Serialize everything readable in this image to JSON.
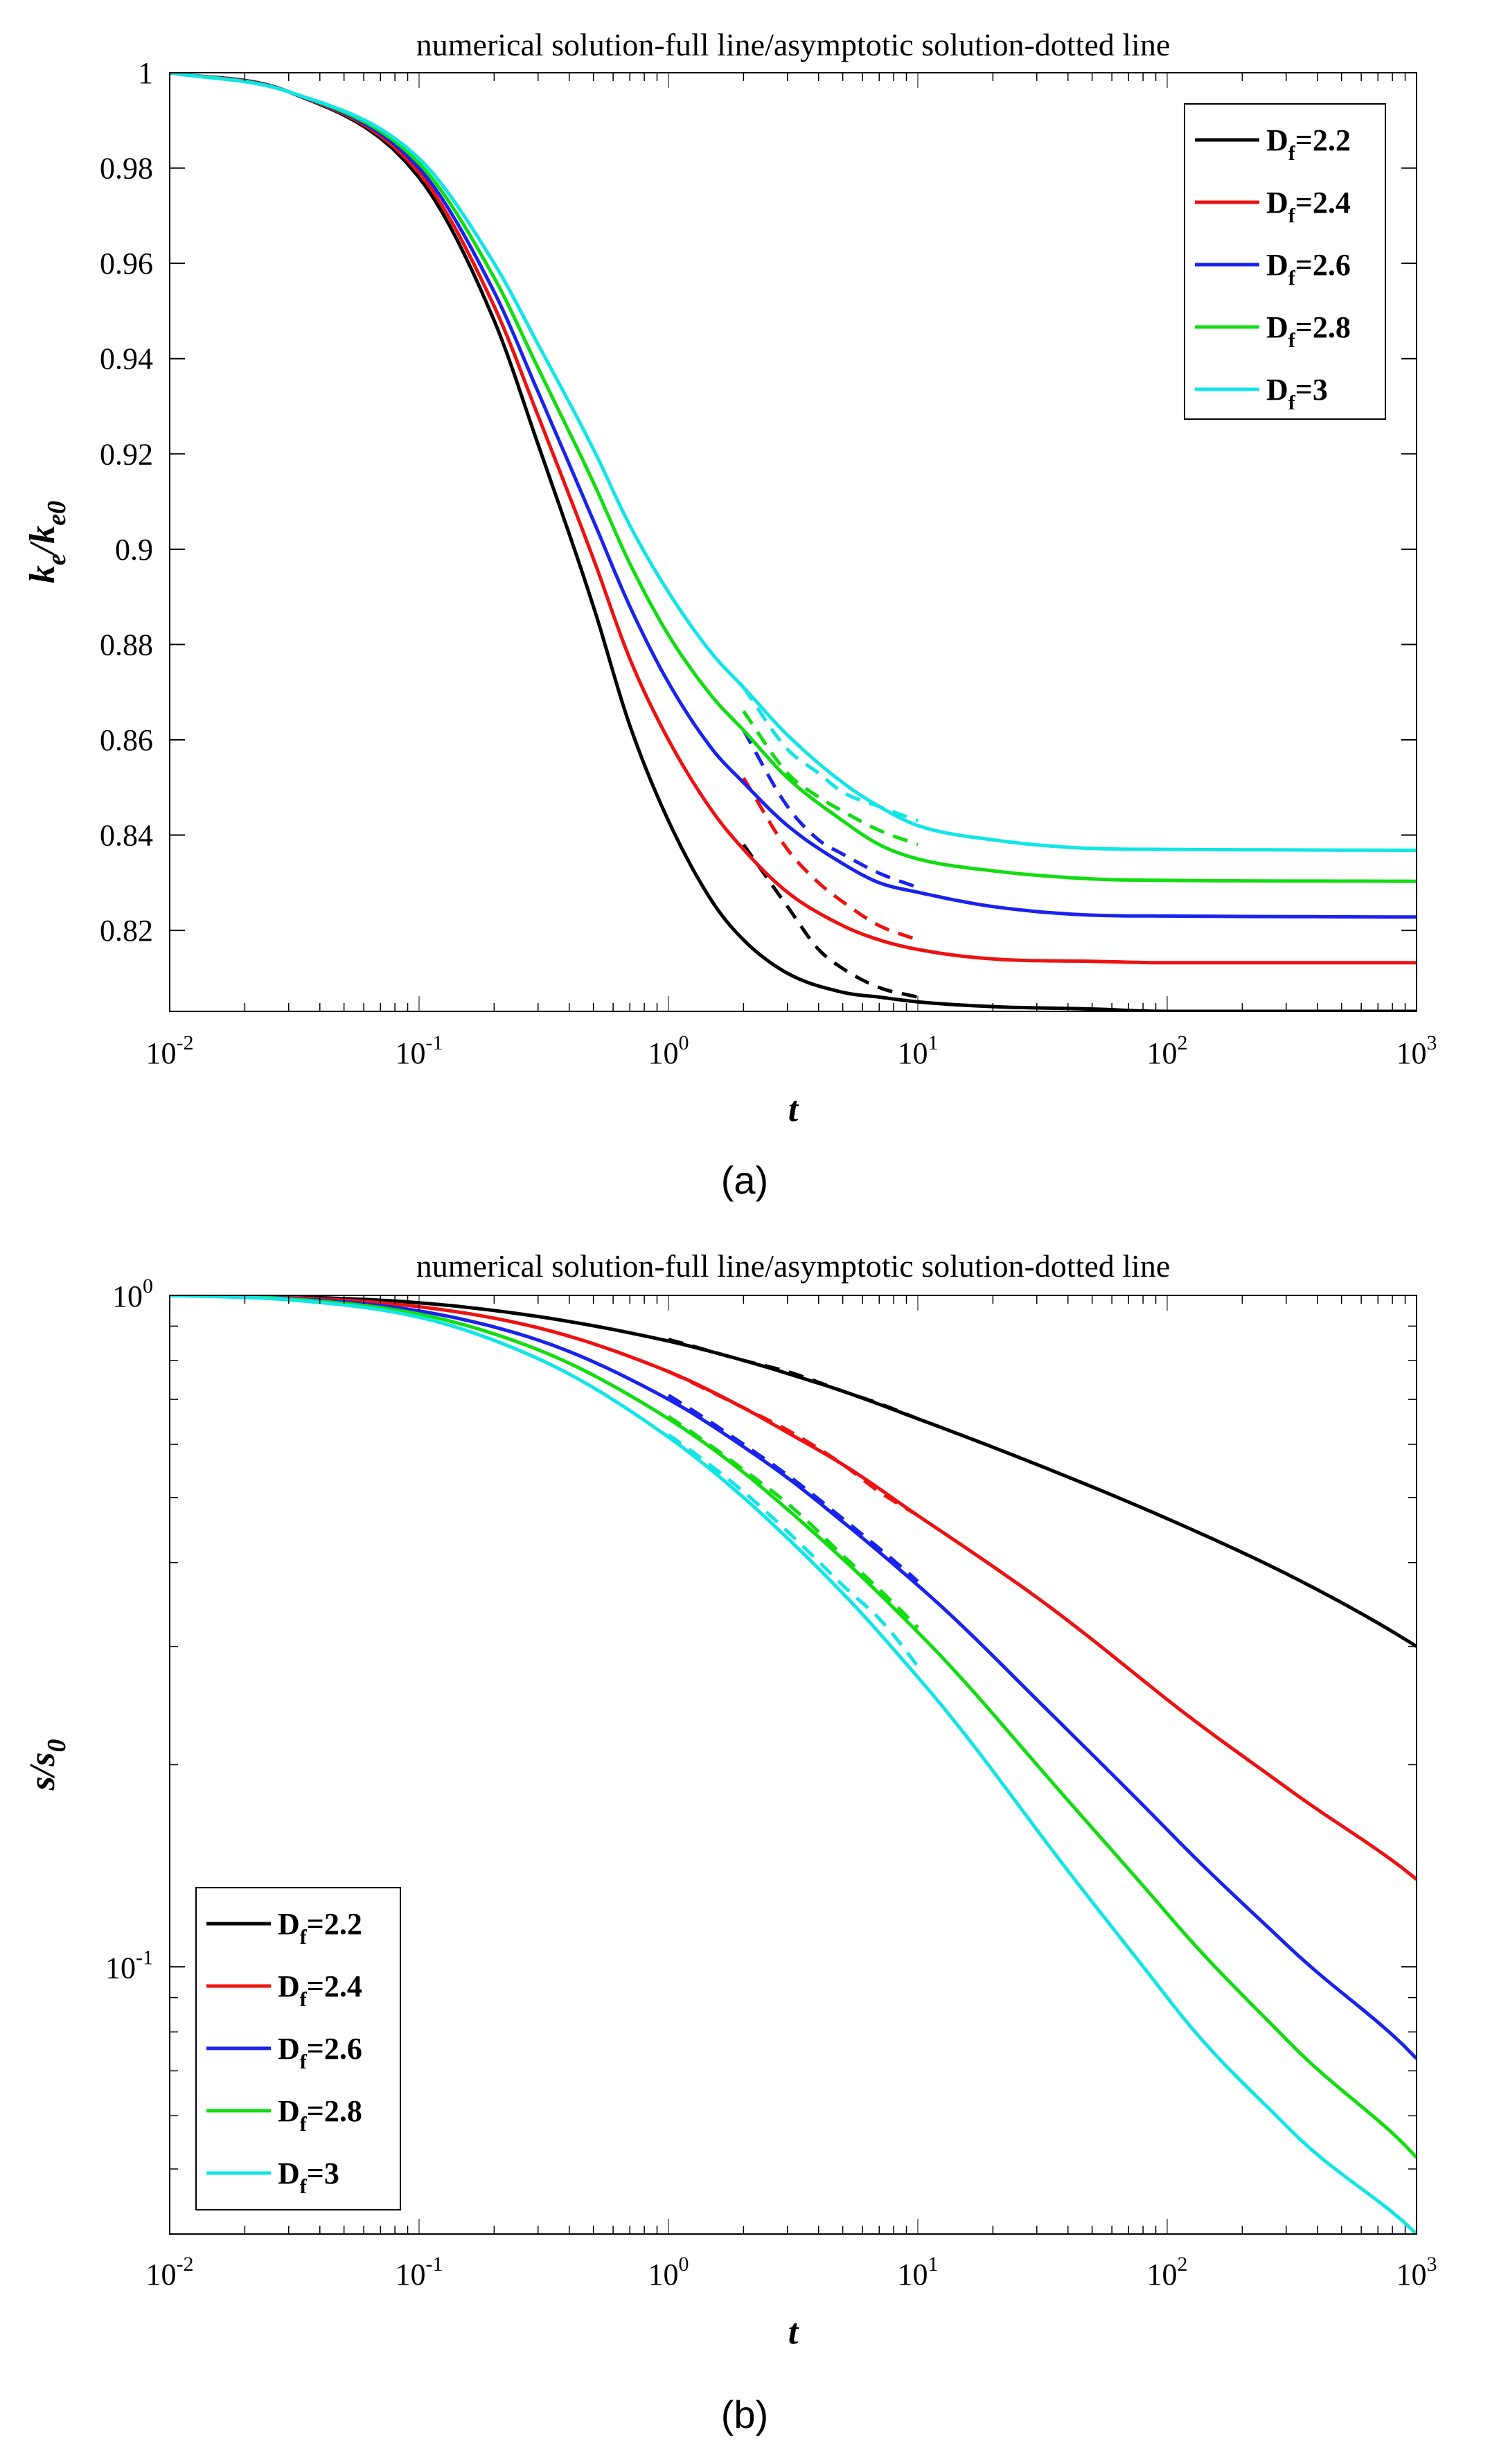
{
  "figure": {
    "label_a": "(a)",
    "label_b": "(b)"
  },
  "chart_data": [
    {
      "type": "line",
      "panel": "(a)",
      "title": "numerical solution-full line/asymptotic solution-dotted line",
      "xlabel": "t",
      "ylabel": {
        "main": "k",
        "sub1": "e",
        "slash": "/k",
        "sub2": "e0"
      },
      "xscale": "log",
      "xlim": [
        0.01,
        1000
      ],
      "ylim": [
        0.803,
        1.0
      ],
      "xticks": [
        {
          "value": 0.01,
          "base": "10",
          "exp": "-2"
        },
        {
          "value": 0.1,
          "base": "10",
          "exp": "-1"
        },
        {
          "value": 1,
          "base": "10",
          "exp": "0"
        },
        {
          "value": 10,
          "base": "10",
          "exp": "1"
        },
        {
          "value": 100,
          "base": "10",
          "exp": "2"
        },
        {
          "value": 1000,
          "base": "10",
          "exp": "3"
        }
      ],
      "yticks": [
        {
          "value": 1.0,
          "label": "1"
        },
        {
          "value": 0.98,
          "label": "0.98"
        },
        {
          "value": 0.96,
          "label": "0.96"
        },
        {
          "value": 0.94,
          "label": "0.94"
        },
        {
          "value": 0.92,
          "label": "0.92"
        },
        {
          "value": 0.9,
          "label": "0.9"
        },
        {
          "value": 0.88,
          "label": "0.88"
        },
        {
          "value": 0.86,
          "label": "0.86"
        },
        {
          "value": 0.84,
          "label": "0.84"
        },
        {
          "value": 0.82,
          "label": "0.82"
        }
      ],
      "legend_position": "top-right",
      "series": [
        {
          "name": "D_f=2.2",
          "label_main": "D",
          "label_sub": "f",
          "label_rest": "=2.2",
          "color": "#000000",
          "x": [
            0.01,
            0.03,
            0.1,
            0.2,
            0.3,
            0.5,
            0.7,
            1,
            1.5,
            2,
            3,
            5,
            7,
            10,
            20,
            50,
            100,
            1000
          ],
          "values": [
            1.0,
            0.996,
            0.978,
            0.948,
            0.922,
            0.888,
            0.863,
            0.843,
            0.826,
            0.818,
            0.811,
            0.807,
            0.806,
            0.805,
            0.804,
            0.8035,
            0.803,
            0.803
          ],
          "asymptotic": {
            "x": [
              2,
              3,
              4,
              5,
              7,
              10
            ],
            "values": [
              0.838,
              0.825,
              0.816,
              0.812,
              0.808,
              0.806
            ]
          }
        },
        {
          "name": "D_f=2.4",
          "label_main": "D",
          "label_sub": "f",
          "label_rest": "=2.4",
          "color": "#ee1111",
          "x": [
            0.01,
            0.03,
            0.1,
            0.2,
            0.3,
            0.5,
            0.7,
            1,
            1.5,
            2,
            3,
            5,
            7,
            10,
            20,
            50,
            100,
            1000
          ],
          "values": [
            1.0,
            0.996,
            0.979,
            0.951,
            0.928,
            0.898,
            0.877,
            0.86,
            0.845,
            0.837,
            0.828,
            0.821,
            0.818,
            0.816,
            0.814,
            0.8135,
            0.8132,
            0.8132
          ],
          "asymptotic": {
            "x": [
              2,
              3,
              4,
              5,
              7,
              10
            ],
            "values": [
              0.852,
              0.837,
              0.83,
              0.826,
              0.821,
              0.818
            ]
          }
        },
        {
          "name": "D_f=2.6",
          "label_main": "D",
          "label_sub": "f",
          "label_rest": "=2.6",
          "color": "#1a22ee",
          "x": [
            0.01,
            0.03,
            0.1,
            0.2,
            0.3,
            0.5,
            0.7,
            1,
            1.5,
            2,
            3,
            5,
            7,
            10,
            20,
            50,
            100,
            1000
          ],
          "values": [
            1.0,
            0.996,
            0.98,
            0.954,
            0.933,
            0.906,
            0.888,
            0.872,
            0.858,
            0.851,
            0.842,
            0.834,
            0.83,
            0.828,
            0.825,
            0.8232,
            0.823,
            0.8228
          ],
          "asymptotic": {
            "x": [
              2,
              3,
              4,
              5,
              7,
              10
            ],
            "values": [
              0.862,
              0.846,
              0.839,
              0.836,
              0.832,
              0.829
            ]
          }
        },
        {
          "name": "D_f=2.8",
          "label_main": "D",
          "label_sub": "f",
          "label_rest": "=2.8",
          "color": "#11dd11",
          "x": [
            0.01,
            0.03,
            0.1,
            0.2,
            0.3,
            0.5,
            0.7,
            1,
            1.5,
            2,
            3,
            5,
            7,
            10,
            20,
            50,
            100,
            1000
          ],
          "values": [
            1.0,
            0.996,
            0.981,
            0.957,
            0.938,
            0.914,
            0.897,
            0.882,
            0.869,
            0.862,
            0.852,
            0.843,
            0.838,
            0.835,
            0.8325,
            0.8308,
            0.8305,
            0.8303
          ],
          "asymptotic": {
            "x": [
              2,
              3,
              4,
              5,
              7,
              10
            ],
            "values": [
              0.866,
              0.853,
              0.848,
              0.845,
              0.841,
              0.838
            ]
          }
        },
        {
          "name": "D_f=3",
          "label_main": "D",
          "label_sub": "f",
          "label_rest": "=3",
          "color": "#11e5e5",
          "x": [
            0.01,
            0.03,
            0.1,
            0.2,
            0.3,
            0.5,
            0.7,
            1,
            1.5,
            2,
            3,
            5,
            7,
            10,
            20,
            50,
            100,
            1000
          ],
          "values": [
            1.0,
            0.996,
            0.982,
            0.96,
            0.943,
            0.921,
            0.905,
            0.891,
            0.878,
            0.871,
            0.861,
            0.851,
            0.846,
            0.842,
            0.839,
            0.8372,
            0.837,
            0.8368
          ],
          "asymptotic": {
            "x": [
              2,
              3,
              4,
              5,
              7,
              10
            ],
            "values": [
              0.871,
              0.858,
              0.853,
              0.849,
              0.846,
              0.843
            ]
          }
        }
      ]
    },
    {
      "type": "line",
      "panel": "(b)",
      "title": "numerical solution-full line/asymptotic solution-dotted line",
      "xlabel": "t",
      "ylabel": {
        "main": "s/s",
        "sub": "0"
      },
      "xscale": "log",
      "yscale": "log",
      "xlim": [
        0.01,
        1000
      ],
      "ylim": [
        0.04,
        1.0
      ],
      "xticks": [
        {
          "value": 0.01,
          "base": "10",
          "exp": "-2"
        },
        {
          "value": 0.1,
          "base": "10",
          "exp": "-1"
        },
        {
          "value": 1,
          "base": "10",
          "exp": "0"
        },
        {
          "value": 10,
          "base": "10",
          "exp": "1"
        },
        {
          "value": 100,
          "base": "10",
          "exp": "2"
        },
        {
          "value": 1000,
          "base": "10",
          "exp": "3"
        }
      ],
      "yticks": [
        {
          "value": 1.0,
          "base": "10",
          "exp": "0"
        },
        {
          "value": 0.1,
          "base": "10",
          "exp": "-1"
        }
      ],
      "legend_position": "bottom-left",
      "series": [
        {
          "name": "D_f=2.2",
          "label_main": "D",
          "label_sub": "f",
          "label_rest": "=2.2",
          "color": "#000000",
          "x": [
            0.01,
            0.03,
            0.1,
            0.3,
            1,
            2,
            3,
            5,
            10,
            30,
            100,
            300,
            1000
          ],
          "values": [
            1.0,
            0.995,
            0.975,
            0.93,
            0.855,
            0.8,
            0.765,
            0.72,
            0.655,
            0.56,
            0.465,
            0.385,
            0.3
          ],
          "asymptotic": {
            "x": [
              1,
              2,
              3,
              5,
              7,
              10
            ],
            "values": [
              0.86,
              0.8,
              0.77,
              0.72,
              0.69,
              0.655
            ]
          }
        },
        {
          "name": "D_f=2.4",
          "label_main": "D",
          "label_sub": "f",
          "label_rest": "=2.4",
          "color": "#ee1111",
          "x": [
            0.01,
            0.03,
            0.1,
            0.3,
            1,
            2,
            3,
            5,
            10,
            30,
            100,
            300,
            1000
          ],
          "values": [
            1.0,
            0.993,
            0.962,
            0.895,
            0.77,
            0.68,
            0.625,
            0.56,
            0.47,
            0.355,
            0.25,
            0.185,
            0.135
          ],
          "asymptotic": {
            "x": [
              1,
              2,
              3,
              5,
              7,
              10
            ],
            "values": [
              0.77,
              0.68,
              0.63,
              0.56,
              0.51,
              0.47
            ]
          }
        },
        {
          "name": "D_f=2.6",
          "label_main": "D",
          "label_sub": "f",
          "label_rest": "=2.6",
          "color": "#1a22ee",
          "x": [
            0.01,
            0.03,
            0.1,
            0.3,
            1,
            2,
            3,
            5,
            10,
            30,
            100,
            300,
            1000
          ],
          "values": [
            1.0,
            0.99,
            0.948,
            0.858,
            0.7,
            0.595,
            0.535,
            0.46,
            0.37,
            0.25,
            0.16,
            0.108,
            0.073
          ],
          "asymptotic": {
            "x": [
              1,
              2,
              3,
              5,
              7,
              10
            ],
            "values": [
              0.71,
              0.6,
              0.54,
              0.465,
              0.42,
              0.375
            ]
          }
        },
        {
          "name": "D_f=2.8",
          "label_main": "D",
          "label_sub": "f",
          "label_rest": "=2.8",
          "color": "#11dd11",
          "x": [
            0.01,
            0.03,
            0.1,
            0.3,
            1,
            2,
            3,
            5,
            10,
            30,
            100,
            300,
            1000
          ],
          "values": [
            1.0,
            0.988,
            0.938,
            0.83,
            0.655,
            0.545,
            0.48,
            0.405,
            0.315,
            0.2,
            0.12,
            0.078,
            0.052
          ],
          "asymptotic": {
            "x": [
              1,
              2,
              3,
              5,
              7,
              10
            ],
            "values": [
              0.66,
              0.55,
              0.49,
              0.41,
              0.365,
              0.32
            ]
          }
        },
        {
          "name": "D_f=3",
          "label_main": "D",
          "label_sub": "f",
          "label_rest": "=3",
          "color": "#11e5e5",
          "x": [
            0.01,
            0.03,
            0.1,
            0.3,
            1,
            2,
            3,
            5,
            10,
            30,
            100,
            300,
            1000
          ],
          "values": [
            1.0,
            0.985,
            0.928,
            0.805,
            0.615,
            0.5,
            0.435,
            0.36,
            0.27,
            0.16,
            0.09,
            0.058,
            0.04
          ],
          "asymptotic": {
            "x": [
              1,
              2,
              3,
              5,
              7,
              10
            ],
            "values": [
              0.62,
              0.51,
              0.445,
              0.37,
              0.33,
              0.28
            ]
          }
        }
      ]
    }
  ]
}
